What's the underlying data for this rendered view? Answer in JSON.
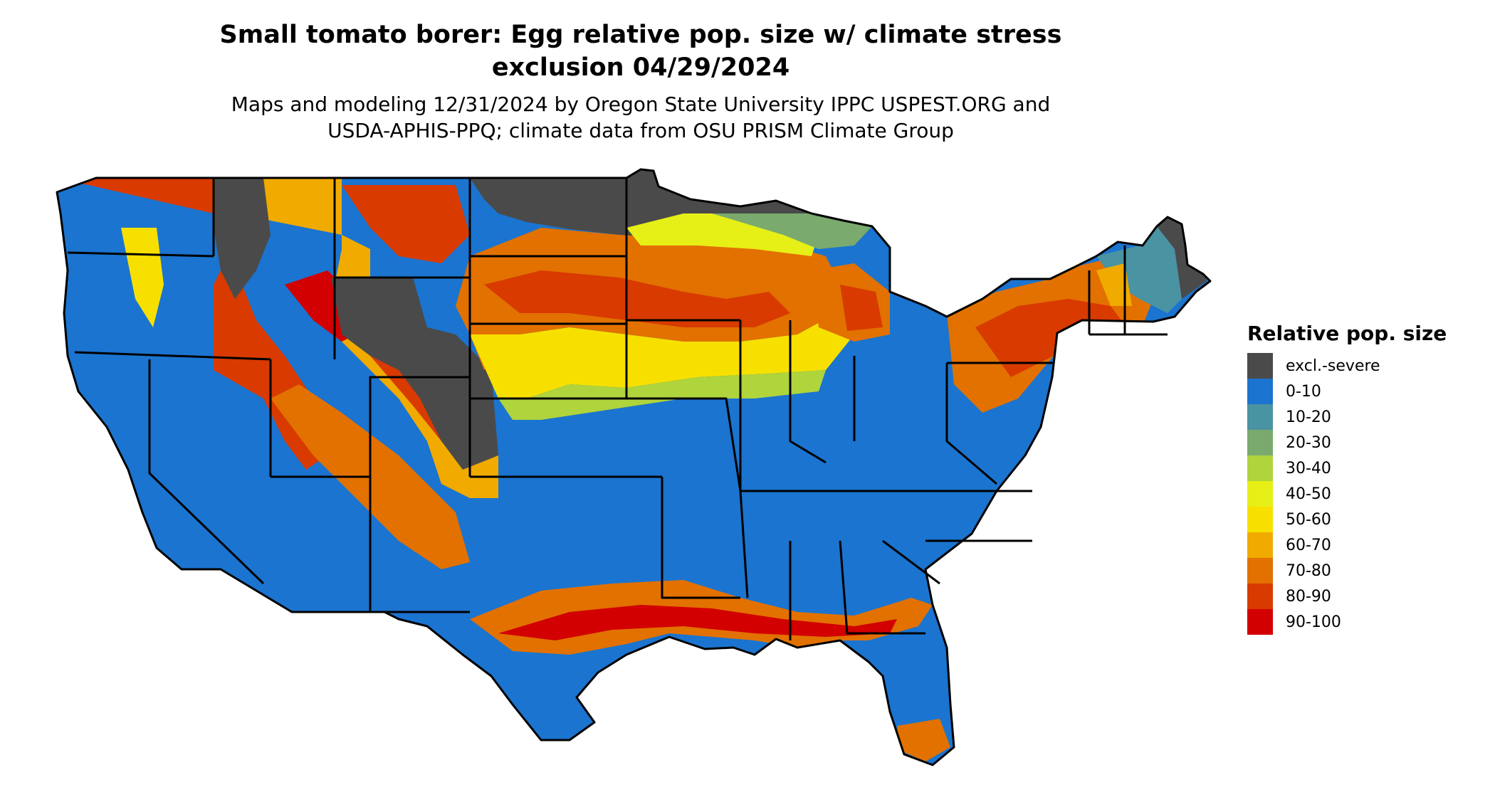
{
  "title": {
    "line1": "Small tomato borer: Egg relative pop. size w/ climate stress",
    "line2": "exclusion 04/29/2024"
  },
  "subtitle": {
    "line1": "Maps and modeling 12/31/2024 by Oregon State University IPPC USPEST.ORG and",
    "line2": "USDA-APHIS-PPQ; climate data from OSU PRISM Climate Group"
  },
  "legend": {
    "title": "Relative pop. size",
    "items": [
      {
        "label": "excl.-severe",
        "color": "#4a4a4a"
      },
      {
        "label": "0-10",
        "color": "#1b74cf"
      },
      {
        "label": "10-20",
        "color": "#4a93a3"
      },
      {
        "label": "20-30",
        "color": "#7aaa6e"
      },
      {
        "label": "30-40",
        "color": "#afd43c"
      },
      {
        "label": "40-50",
        "color": "#e6ef16"
      },
      {
        "label": "50-60",
        "color": "#f7e000"
      },
      {
        "label": "60-70",
        "color": "#f0aa00"
      },
      {
        "label": "70-80",
        "color": "#e27100"
      },
      {
        "label": "80-90",
        "color": "#d83a00"
      },
      {
        "label": "90-100",
        "color": "#d20000"
      }
    ]
  },
  "colors": {
    "excl": "#4a4a4a",
    "c0_10": "#1b74cf",
    "c10_20": "#4a93a3",
    "c20_30": "#7aaa6e",
    "c30_40": "#afd43c",
    "c40_50": "#e6ef16",
    "c50_60": "#f7e000",
    "c60_70": "#f0aa00",
    "c70_80": "#e27100",
    "c80_90": "#d83a00",
    "c90_100": "#d20000",
    "border": "#000000",
    "background": "#ffffff"
  }
}
